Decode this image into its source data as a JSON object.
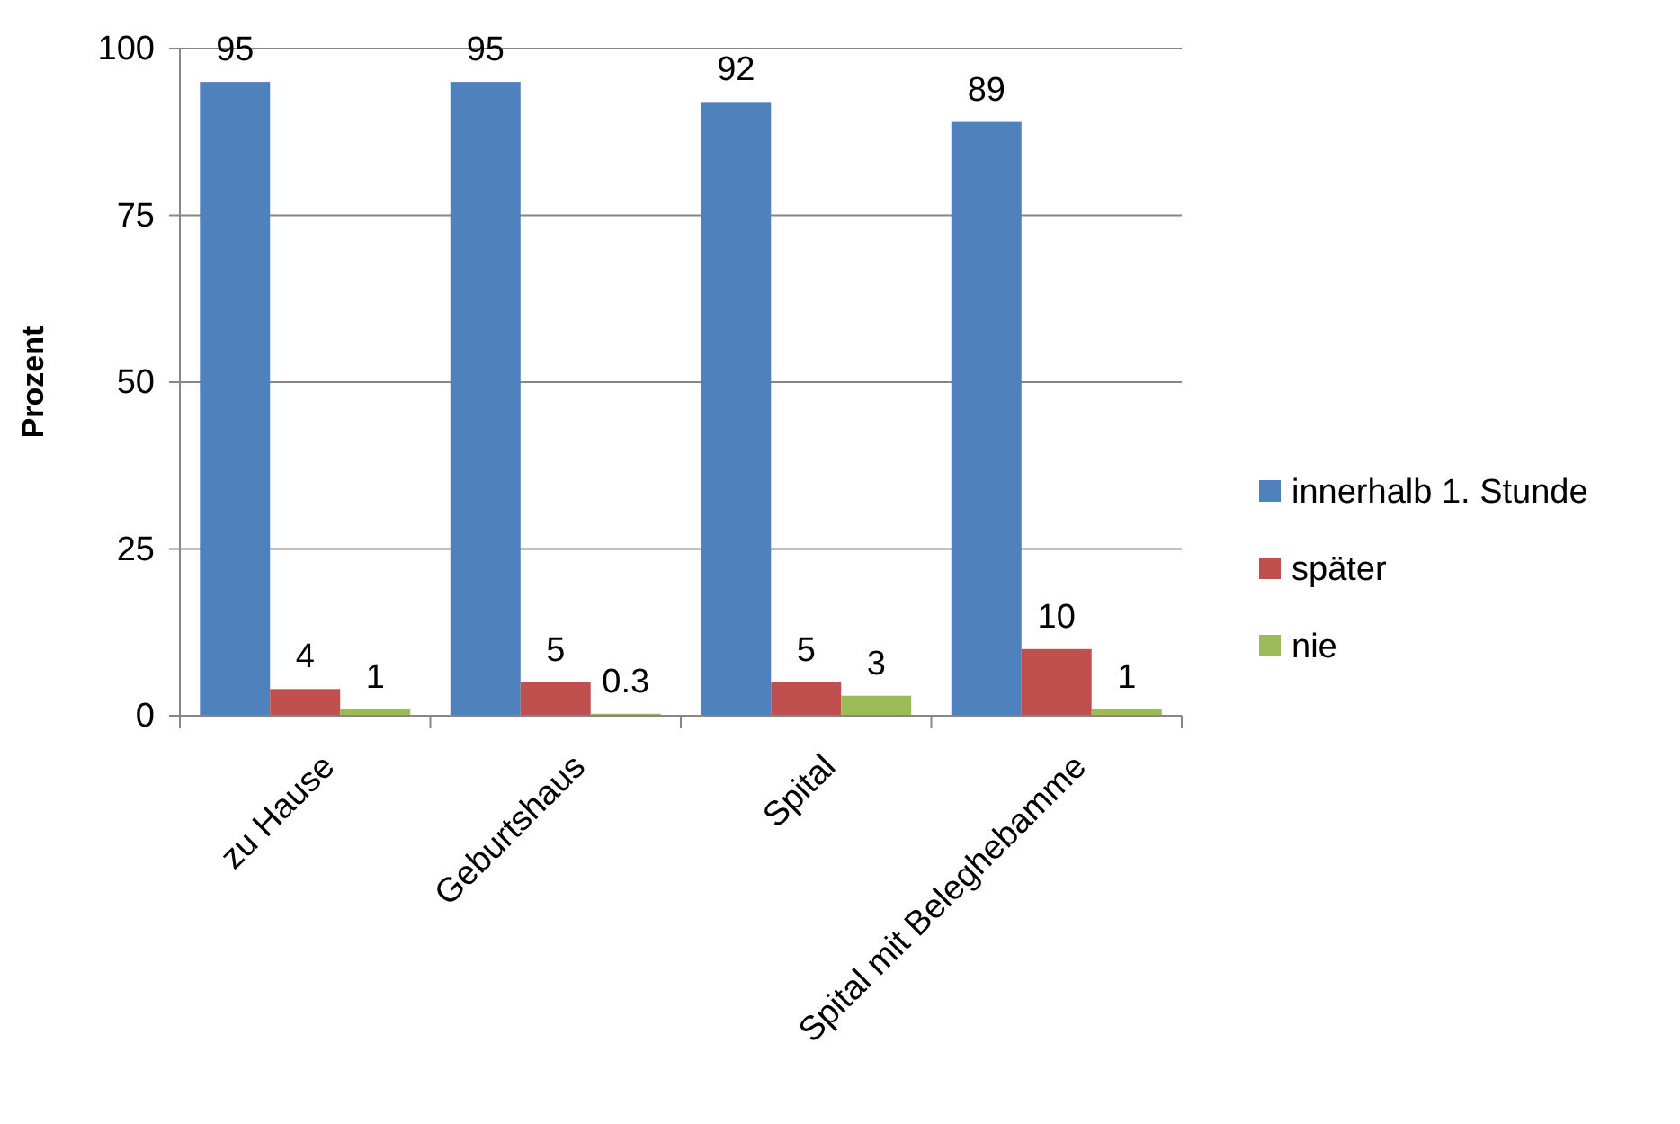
{
  "chart_data": {
    "type": "bar",
    "ylabel": "Prozent",
    "categories": [
      "zu Hause",
      "Geburtshaus",
      "Spital",
      "Spital mit Beleghebamme"
    ],
    "series": [
      {
        "name": "innerhalb 1. Stunde",
        "color": "#4f81bd",
        "values": [
          95,
          95,
          92,
          89
        ]
      },
      {
        "name": "später",
        "color": "#c0504d",
        "values": [
          4,
          5,
          5,
          10
        ]
      },
      {
        "name": "nie",
        "color": "#9bbb59",
        "values": [
          1,
          0.3,
          3,
          1
        ]
      }
    ],
    "ylim": [
      0,
      100
    ],
    "yticks": [
      0,
      25,
      50,
      75,
      100
    ],
    "grid": "y",
    "legend": "right",
    "data_labels": true
  }
}
